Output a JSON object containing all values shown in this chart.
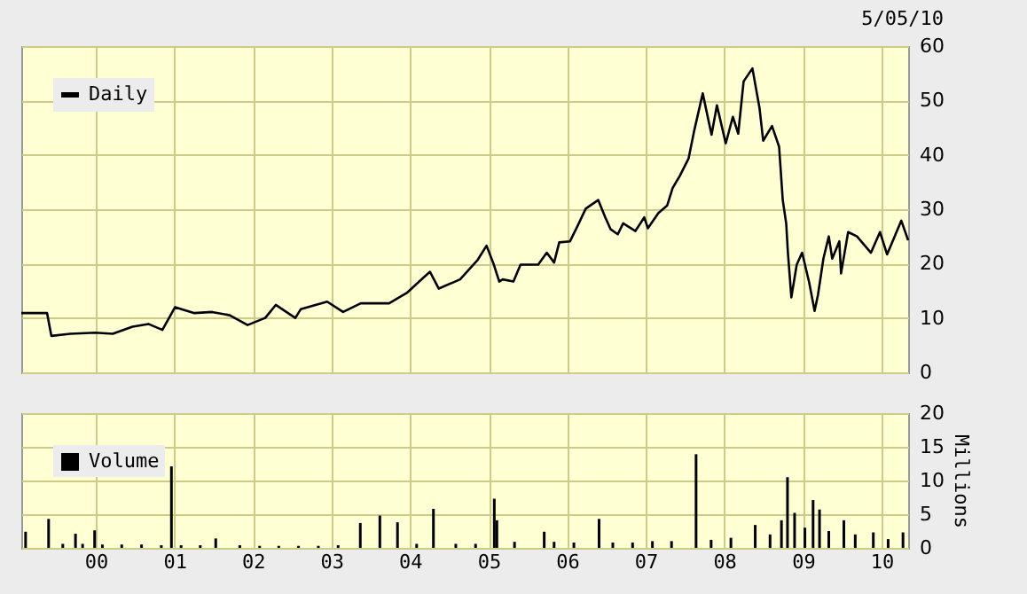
{
  "chart_data": [
    {
      "type": "line",
      "annotations": [
        "5/05/10"
      ],
      "legend": "top left",
      "grid": true,
      "tick_labels": "y",
      "xlim": [
        "1999-01-20",
        "2010-05-05"
      ],
      "xticks": [
        {
          "value": "2000-01-01",
          "label": null
        },
        {
          "value": "2001-01-01",
          "label": null
        },
        {
          "value": "2002-01-01",
          "label": null
        },
        {
          "value": "2003-01-01",
          "label": null
        },
        {
          "value": "2004-01-01",
          "label": null
        },
        {
          "value": "2005-01-01",
          "label": null
        },
        {
          "value": "2006-01-01",
          "label": null
        },
        {
          "value": "2007-01-01",
          "label": null
        },
        {
          "value": "2008-01-01",
          "label": null
        },
        {
          "value": "2009-01-01",
          "label": null
        },
        {
          "value": "2010-01-01",
          "label": null
        }
      ],
      "ylim": [
        0,
        60
      ],
      "yticks": [
        0,
        10,
        20,
        30,
        40,
        50,
        60
      ],
      "x": [
        "1999-01-20",
        "1999-05-20",
        "1999-06-09",
        "1999-09-05",
        "1999-12-30",
        "2000-03-20",
        "2000-06-20",
        "2000-09-02",
        "2000-11-06",
        "2001-01-04",
        "2001-04-04",
        "2001-06-25",
        "2001-09-15",
        "2001-12-07",
        "2002-02-27",
        "2002-04-17",
        "2002-07-17",
        "2002-08-11",
        "2002-12-12",
        "2003-02-24",
        "2003-05-17",
        "2003-09-26",
        "2003-12-17",
        "2004-02-13",
        "2004-04-03",
        "2004-05-14",
        "2004-08-21",
        "2004-11-11",
        "2004-12-22",
        "2005-01-25",
        "2005-02-19",
        "2005-03-07",
        "2005-04-26",
        "2005-05-29",
        "2005-08-19",
        "2005-09-28",
        "2005-11-01",
        "2005-11-25",
        "2006-01-14",
        "2006-02-24",
        "2006-03-28",
        "2006-05-25",
        "2006-06-27",
        "2006-07-22",
        "2006-08-24",
        "2006-09-18",
        "2006-11-14",
        "2006-12-25",
        "2007-01-11",
        "2007-03-01",
        "2007-04-11",
        "2007-05-06",
        "2007-06-08",
        "2007-07-19",
        "2007-08-13",
        "2007-09-23",
        "2007-11-03",
        "2007-11-28",
        "2008-01-08",
        "2008-02-10",
        "2008-03-06",
        "2008-03-31",
        "2008-05-11",
        "2008-06-13",
        "2008-06-30",
        "2008-08-10",
        "2008-09-12",
        "2008-09-29",
        "2008-10-15",
        "2008-10-23",
        "2008-11-08",
        "2008-12-03",
        "2008-12-28",
        "2009-01-30",
        "2009-02-24",
        "2009-03-12",
        "2009-04-06",
        "2009-05-01",
        "2009-05-17",
        "2009-06-19",
        "2009-06-27",
        "2009-07-30",
        "2009-09-09",
        "2009-11-13",
        "2009-12-25",
        "2010-01-27",
        "2010-03-17",
        "2010-04-03",
        "2010-05-05"
      ],
      "series": [
        {
          "name": "Daily",
          "color": "#000000",
          "values": [
            10.9,
            10.9,
            6.7,
            7.1,
            7.3,
            7.1,
            8.4,
            8.9,
            7.8,
            12.0,
            10.9,
            11.1,
            10.5,
            8.7,
            10.0,
            12.4,
            10.0,
            11.6,
            13.0,
            11.1,
            12.7,
            12.7,
            14.6,
            16.7,
            18.5,
            15.4,
            17.1,
            20.7,
            23.3,
            19.8,
            16.7,
            17.1,
            16.7,
            19.8,
            19.8,
            22.0,
            20.2,
            23.9,
            24.1,
            27.4,
            30.1,
            31.7,
            28.5,
            26.3,
            25.4,
            27.4,
            26.0,
            28.5,
            26.5,
            29.3,
            30.7,
            33.9,
            36.1,
            39.3,
            44.2,
            51.3,
            43.7,
            49.1,
            42.1,
            47.0,
            43.9,
            53.5,
            55.9,
            48.6,
            42.6,
            45.3,
            41.5,
            31.7,
            27.4,
            22.0,
            13.8,
            19.8,
            22.0,
            16.5,
            11.3,
            14.3,
            20.9,
            25.0,
            20.9,
            24.1,
            18.2,
            25.8,
            25.0,
            22.0,
            25.8,
            21.7,
            26.3,
            27.9,
            24.3
          ]
        }
      ]
    },
    {
      "type": "bar",
      "ylabel": "Millions",
      "legend": "top left",
      "grid": true,
      "xlim": [
        "1999-01-20",
        "2010-05-05"
      ],
      "xticks": [
        {
          "value": "2000-01-01",
          "label": "00"
        },
        {
          "value": "2001-01-01",
          "label": "01"
        },
        {
          "value": "2002-01-01",
          "label": "02"
        },
        {
          "value": "2003-01-01",
          "label": "03"
        },
        {
          "value": "2004-01-01",
          "label": "04"
        },
        {
          "value": "2005-01-01",
          "label": "05"
        },
        {
          "value": "2006-01-01",
          "label": "06"
        },
        {
          "value": "2007-01-01",
          "label": "07"
        },
        {
          "value": "2008-01-01",
          "label": "08"
        },
        {
          "value": "2009-01-01",
          "label": "09"
        },
        {
          "value": "2010-01-01",
          "label": "10"
        }
      ],
      "ylim": [
        0,
        20
      ],
      "yticks": [
        0,
        5,
        10,
        15,
        20
      ],
      "x": [
        "1999-02-09",
        "1999-05-27",
        "1999-08-01",
        "1999-09-29",
        "1999-11-01",
        "1999-12-27",
        "2000-02-01",
        "2000-05-01",
        "2000-08-01",
        "2000-11-01",
        "2000-12-18",
        "2001-02-01",
        "2001-05-01",
        "2001-07-12",
        "2001-11-01",
        "2002-02-01",
        "2002-05-01",
        "2002-08-01",
        "2002-11-01",
        "2003-02-01",
        "2003-05-15",
        "2003-08-14",
        "2003-11-04",
        "2004-02-01",
        "2004-04-19",
        "2004-08-01",
        "2004-11-01",
        "2005-01-27",
        "2005-02-08",
        "2005-05-01",
        "2005-09-16",
        "2005-11-01",
        "2006-02-01",
        "2006-05-29",
        "2006-08-01",
        "2006-11-01",
        "2007-02-01",
        "2007-05-01",
        "2007-08-23",
        "2007-11-01",
        "2008-02-01",
        "2008-05-24",
        "2008-08-01",
        "2008-09-23",
        "2008-10-21",
        "2008-11-23",
        "2009-01-10",
        "2009-02-17",
        "2009-03-19",
        "2009-05-01",
        "2009-07-10",
        "2009-09-01",
        "2009-11-24",
        "2010-02-01",
        "2010-04-11"
      ],
      "series": [
        {
          "name": "Volume",
          "color": "#000000",
          "values": [
            2.4,
            4.3,
            0.6,
            2.1,
            0.6,
            2.6,
            0.5,
            0.5,
            0.5,
            0.4,
            12.1,
            0.4,
            0.4,
            1.4,
            0.4,
            0.3,
            0.3,
            0.3,
            0.3,
            0.4,
            3.7,
            4.8,
            3.8,
            0.6,
            5.8,
            0.6,
            0.6,
            7.3,
            4.1,
            0.9,
            2.4,
            0.9,
            0.8,
            4.3,
            0.8,
            0.8,
            1.0,
            1.0,
            13.9,
            1.2,
            1.5,
            3.4,
            2.0,
            4.1,
            10.5,
            5.2,
            3.0,
            7.1,
            5.7,
            2.5,
            4.1,
            2.0,
            2.3,
            1.3,
            2.3
          ]
        }
      ]
    }
  ]
}
